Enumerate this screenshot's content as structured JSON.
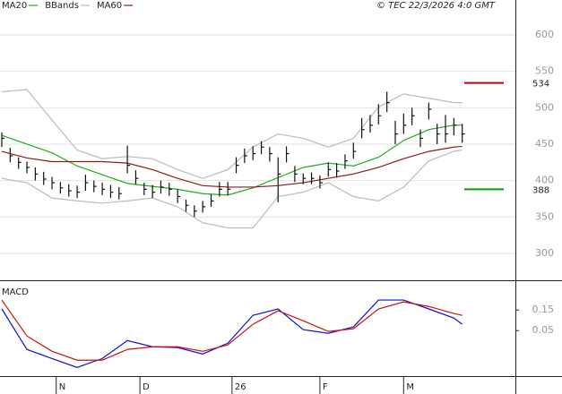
{
  "chart_data": [
    {
      "type": "ohlc",
      "timestamp": "© TEC 22/3/2026 4:0 GMT",
      "x": [
        0,
        2,
        4,
        6,
        8,
        10,
        12,
        14,
        16,
        18,
        20,
        22,
        24,
        26,
        28,
        30,
        32,
        34,
        36,
        38,
        40,
        42,
        44,
        46,
        48,
        50,
        52,
        54,
        56,
        58,
        60,
        62,
        64,
        66,
        68,
        70,
        72,
        74,
        76,
        78,
        80,
        82,
        84,
        86,
        88,
        90,
        92,
        94,
        96,
        98,
        100,
        102,
        104,
        106,
        108,
        110
      ],
      "high": [
        466,
        445,
        432,
        426,
        418,
        412,
        405,
        398,
        395,
        393,
        408,
        400,
        397,
        394,
        391,
        448,
        414,
        397,
        394,
        400,
        397,
        388,
        374,
        366,
        372,
        381,
        398,
        398,
        432,
        444,
        447,
        454,
        446,
        432,
        447,
        420,
        410,
        411,
        407,
        425,
        424,
        436,
        452,
        486,
        490,
        505,
        522,
        482,
        492,
        500,
        470,
        507,
        478,
        490,
        486,
        478
      ],
      "low": [
        446,
        425,
        416,
        410,
        400,
        394,
        388,
        382,
        378,
        376,
        386,
        384,
        380,
        376,
        374,
        410,
        395,
        380,
        376,
        382,
        379,
        369,
        357,
        350,
        356,
        364,
        378,
        380,
        410,
        424,
        428,
        436,
        426,
        370,
        425,
        398,
        395,
        395,
        389,
        405,
        404,
        416,
        430,
        458,
        466,
        477,
        494,
        450,
        464,
        476,
        446,
        484,
        450,
        452,
        462,
        452
      ],
      "close": [
        458,
        434,
        425,
        418,
        409,
        402,
        397,
        390,
        386,
        384,
        397,
        392,
        388,
        384,
        382,
        421,
        403,
        388,
        384,
        391,
        388,
        378,
        366,
        358,
        364,
        372,
        388,
        388,
        421,
        434,
        437,
        446,
        437,
        409,
        437,
        409,
        403,
        403,
        397,
        415,
        413,
        427,
        440,
        470,
        476,
        489,
        507,
        464,
        476,
        489,
        458,
        498,
        464,
        464,
        476,
        464
      ],
      "bar_color": "#111111",
      "lines": {
        "x": [
          0,
          6,
          12,
          18,
          24,
          30,
          36,
          42,
          48,
          54,
          60,
          66,
          72,
          78,
          84,
          90,
          96,
          102,
          108,
          110
        ],
        "series": [
          {
            "name": "MA20",
            "color": "#22aa22",
            "values": [
              462,
              450,
              438,
              420,
              408,
              396,
              392,
              388,
              382,
              380,
              390,
              404,
              418,
              424,
              420,
              432,
              455,
              470,
              476,
              476
            ]
          },
          {
            "name": "BBands",
            "color": "#bbbbbb",
            "values": [
              522,
              525,
              483,
              442,
              430,
              433,
              430,
              415,
              403,
              415,
              446,
              464,
              458,
              446,
              458,
              501,
              519,
              513,
              507,
              507
            ],
            "lower": [
              403,
              397,
              376,
              372,
              369,
              372,
              376,
              364,
              342,
              335,
              335,
              378,
              384,
              397,
              378,
              372,
              391,
              427,
              440,
              442
            ]
          },
          {
            "name": "MA60",
            "color": "#8b1a1a",
            "values": [
              440,
              431,
              426,
              426,
              426,
              424,
              415,
              403,
              393,
              391,
              391,
              393,
              397,
              403,
              409,
              418,
              430,
              440,
              446,
              447
            ]
          }
        ]
      },
      "markers": [
        {
          "value": 534,
          "color": "#cc0000"
        },
        {
          "value": 388,
          "color": "#119911"
        }
      ],
      "xlim": [
        -0.43,
        122.7
      ],
      "ylim": [
        263,
        648
      ],
      "yticks": [
        300,
        350,
        400,
        450,
        500,
        550,
        600
      ],
      "grid": true
    },
    {
      "type": "line",
      "title": "MACD",
      "x": [
        0,
        6,
        12,
        18,
        24,
        30,
        36,
        42,
        48,
        54,
        60,
        66,
        72,
        78,
        84,
        90,
        96,
        102,
        108,
        110
      ],
      "series": [
        {
          "color": "#1010cc",
          "values": [
            0.155,
            -0.041,
            -0.085,
            -0.128,
            -0.085,
            0.002,
            -0.028,
            -0.032,
            -0.063,
            -0.011,
            0.124,
            0.155,
            0.055,
            0.037,
            0.068,
            0.198,
            0.198,
            0.155,
            0.111,
            0.081
          ]
        },
        {
          "color": "#cc1010",
          "values": [
            0.198,
            0.024,
            -0.05,
            -0.093,
            -0.093,
            -0.041,
            -0.028,
            -0.028,
            -0.05,
            -0.019,
            0.081,
            0.146,
            0.098,
            0.046,
            0.059,
            0.155,
            0.189,
            0.167,
            0.133,
            0.124
          ]
        }
      ],
      "xlim": [
        -0.43,
        122.7
      ],
      "ylim": [
        -0.17,
        0.285
      ],
      "yticks": [
        0.05,
        0.15
      ],
      "xticks": [
        {
          "value": 13,
          "label": "N"
        },
        {
          "value": 33,
          "label": "D"
        },
        {
          "value": 55,
          "label": "26"
        },
        {
          "value": 76,
          "label": "F"
        },
        {
          "value": 96,
          "label": "M"
        }
      ]
    }
  ]
}
